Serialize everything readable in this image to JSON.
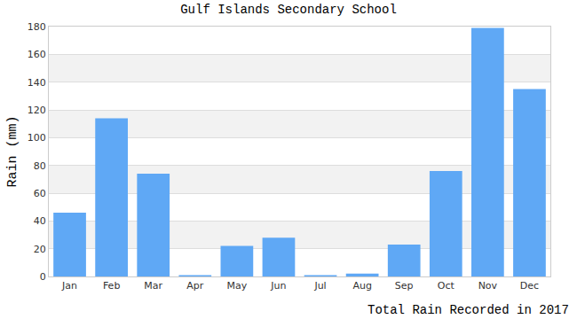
{
  "chart_data": {
    "type": "bar",
    "title": "Gulf Islands Secondary School",
    "xlabel": "Total Rain Recorded in 2017",
    "ylabel": "Rain (mm)",
    "categories": [
      "Jan",
      "Feb",
      "Mar",
      "Apr",
      "May",
      "Jun",
      "Jul",
      "Aug",
      "Sep",
      "Oct",
      "Nov",
      "Dec"
    ],
    "values": [
      46,
      114,
      74,
      1,
      22,
      28,
      1,
      2,
      23,
      76,
      179,
      135
    ],
    "color": "#5fa8f5",
    "ylim": [
      0,
      180
    ],
    "yticks": [
      0,
      20,
      40,
      60,
      80,
      100,
      120,
      140,
      160,
      180
    ],
    "grid": true
  }
}
